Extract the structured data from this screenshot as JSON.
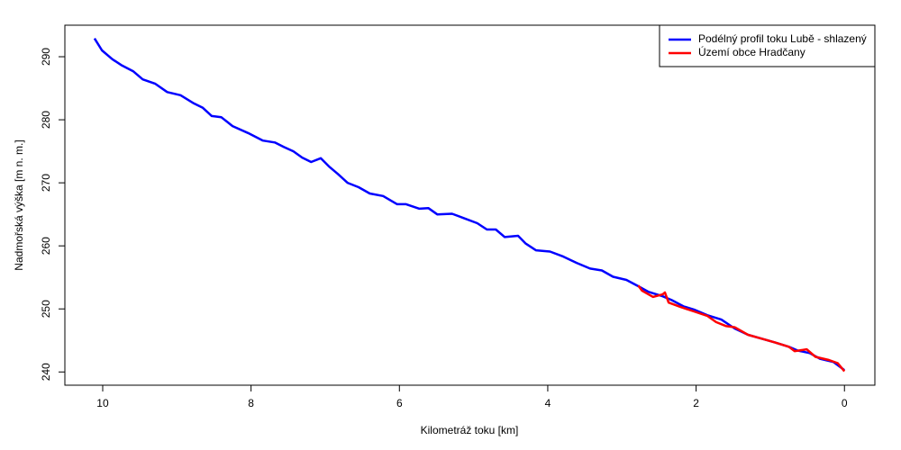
{
  "chart_data": {
    "type": "line",
    "xlabel": "Kilometráž toku [km]",
    "ylabel": "Nadmořská výška [m n. m.]",
    "xlim": [
      10.51,
      -0.41
    ],
    "ylim": [
      237.9,
      295
    ],
    "xticks": [
      10,
      8,
      6,
      4,
      2,
      0
    ],
    "yticks": [
      240,
      250,
      260,
      270,
      280,
      290
    ],
    "legend": "top-right",
    "series": [
      {
        "name": "Podélný profil toku Lubě - shlazený",
        "color": "#0000ff",
        "x": [
          10.11,
          10.01,
          9.87,
          9.74,
          9.59,
          9.46,
          9.29,
          9.13,
          8.95,
          8.77,
          8.65,
          8.53,
          8.4,
          8.25,
          8.04,
          7.84,
          7.68,
          7.56,
          7.43,
          7.31,
          7.19,
          7.06,
          6.95,
          6.83,
          6.7,
          6.55,
          6.4,
          6.22,
          6.03,
          5.91,
          5.73,
          5.61,
          5.49,
          5.29,
          5.13,
          4.95,
          4.82,
          4.7,
          4.58,
          4.4,
          4.3,
          4.16,
          3.97,
          3.79,
          3.61,
          3.43,
          3.27,
          3.12,
          2.94,
          2.78,
          2.64,
          2.45,
          2.33,
          2.17,
          2.03,
          1.85,
          1.66,
          1.48,
          1.3,
          1.12,
          0.94,
          0.75,
          0.63,
          0.47,
          0.33,
          0.15,
          0
        ],
        "values": [
          292.9,
          291,
          289.6,
          288.6,
          287.7,
          286.4,
          285.7,
          284.4,
          283.9,
          282.6,
          281.9,
          280.6,
          280.4,
          279,
          277.9,
          276.7,
          276.4,
          275.7,
          275,
          274,
          273.3,
          273.9,
          272.6,
          271.4,
          270,
          269.3,
          268.3,
          267.9,
          266.6,
          266.6,
          265.9,
          266,
          265,
          265.1,
          264.4,
          263.6,
          262.6,
          262.6,
          261.4,
          261.6,
          260.4,
          259.3,
          259.1,
          258.3,
          257.3,
          256.4,
          256.1,
          255.1,
          254.6,
          253.6,
          252.7,
          252,
          251.4,
          250.4,
          249.9,
          249,
          248.3,
          246.9,
          245.9,
          245.3,
          244.7,
          244,
          243.4,
          243,
          242.1,
          241.6,
          240.3
        ]
      },
      {
        "name": "Území obce Hradčany",
        "color": "#ff0000",
        "x": [
          2.78,
          2.73,
          2.58,
          2.45,
          2.42,
          2.37,
          2.21,
          2.03,
          1.85,
          1.73,
          1.6,
          1.48,
          1.3,
          1.12,
          0.94,
          0.75,
          0.67,
          0.51,
          0.39,
          0.21,
          0.09,
          0
        ],
        "values": [
          253.7,
          252.9,
          251.9,
          252.3,
          252.6,
          251,
          250.3,
          249.6,
          248.9,
          247.9,
          247.3,
          247.1,
          245.9,
          245.3,
          244.7,
          244,
          243.3,
          243.6,
          242.4,
          241.9,
          241.4,
          240.1
        ]
      }
    ]
  }
}
